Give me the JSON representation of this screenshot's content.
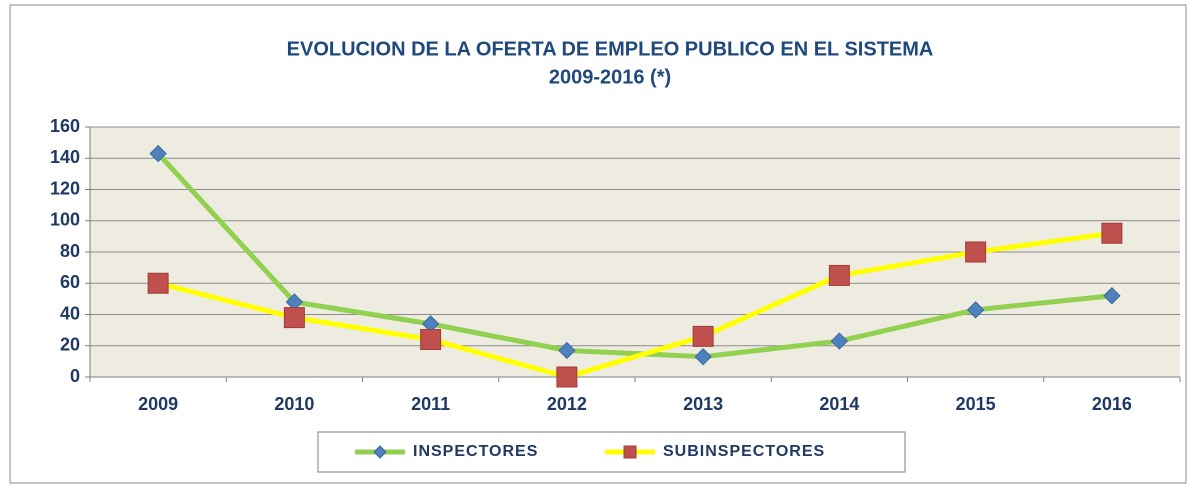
{
  "chart_data": {
    "type": "line",
    "title": [
      "EVOLUCION  DE LA OFERTA DE EMPLEO PUBLICO EN EL SISTEMA",
      "2009-2016  (*)"
    ],
    "categories": [
      "2009",
      "2010",
      "2011",
      "2012",
      "2013",
      "2014",
      "2015",
      "2016"
    ],
    "series": [
      {
        "name": "INSPECTORES",
        "color": "#92d050",
        "marker_color": "#4f81bd",
        "marker": "diamond",
        "values": [
          143,
          48,
          34,
          17,
          13,
          23,
          43,
          52
        ]
      },
      {
        "name": "SUBINSPECTORES",
        "color": "#ffff00",
        "marker_color": "#c0504d",
        "marker": "square",
        "values": [
          60,
          38,
          24,
          0,
          26,
          65,
          80,
          92
        ]
      }
    ],
    "ylim": [
      0,
      160
    ],
    "yticks": [
      0,
      20,
      40,
      60,
      80,
      100,
      120,
      140,
      160
    ],
    "grid": true,
    "legend": "bottom"
  }
}
